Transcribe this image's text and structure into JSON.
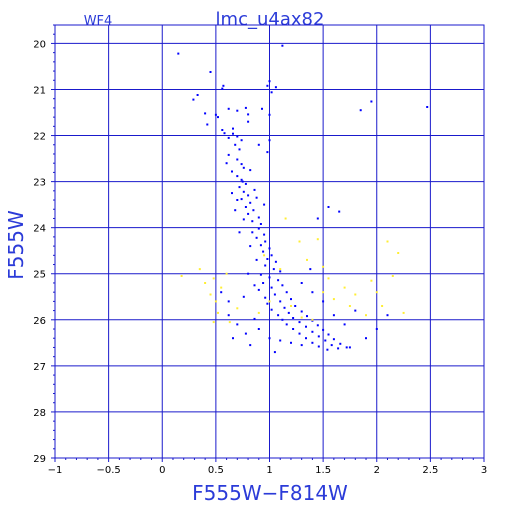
{
  "chart_data": {
    "type": "scatter",
    "title": "lmc_u4ax82",
    "subtitle": "WF4",
    "xlabel": "F555W−F814W",
    "ylabel": "F555W",
    "xlim": [
      -1,
      3
    ],
    "ylim": [
      29,
      19.6
    ],
    "y_inverted": true,
    "grid": true,
    "x_ticks": [
      -1,
      -0.5,
      0,
      0.5,
      1,
      1.5,
      2,
      2.5,
      3
    ],
    "x_tick_labels": [
      "−1",
      "−0.5",
      "0",
      "0.5",
      "1",
      "1.5",
      "2",
      "2.5",
      "3"
    ],
    "y_ticks": [
      20,
      21,
      22,
      23,
      24,
      25,
      26,
      27,
      28,
      29
    ],
    "y_tick_labels": [
      "20",
      "21",
      "22",
      "23",
      "24",
      "25",
      "26",
      "27",
      "28",
      "29"
    ],
    "colors": {
      "frame": "#1a1acc",
      "grid": "#1a1acc",
      "main_points": "#0000ff",
      "secondary_points": "#ffee33",
      "text": "#2b3bd8"
    },
    "series": [
      {
        "color": "#0000ff",
        "points": [
          [
            0.15,
            20.22
          ],
          [
            0.45,
            20.62
          ],
          [
            0.57,
            20.92
          ],
          [
            0.56,
            20.98
          ],
          [
            1.0,
            20.82
          ],
          [
            1.06,
            20.95
          ],
          [
            1.02,
            21.06
          ],
          [
            0.98,
            20.92
          ],
          [
            1.12,
            20.05
          ],
          [
            0.33,
            21.12
          ],
          [
            0.29,
            21.22
          ],
          [
            0.4,
            21.52
          ],
          [
            0.5,
            21.55
          ],
          [
            0.42,
            21.76
          ],
          [
            0.62,
            21.42
          ],
          [
            0.7,
            21.46
          ],
          [
            0.78,
            21.4
          ],
          [
            0.8,
            21.54
          ],
          [
            0.93,
            21.42
          ],
          [
            1.0,
            21.55
          ],
          [
            1.85,
            21.45
          ],
          [
            1.95,
            21.26
          ],
          [
            2.47,
            21.38
          ],
          [
            0.56,
            21.88
          ],
          [
            0.66,
            21.96
          ],
          [
            0.7,
            22.02
          ],
          [
            0.74,
            22.1
          ],
          [
            0.68,
            22.2
          ],
          [
            0.72,
            22.3
          ],
          [
            0.62,
            22.42
          ],
          [
            0.7,
            22.52
          ],
          [
            0.74,
            22.62
          ],
          [
            0.76,
            22.7
          ],
          [
            0.65,
            22.78
          ],
          [
            0.82,
            22.75
          ],
          [
            0.98,
            22.36
          ],
          [
            1.0,
            22.1
          ],
          [
            0.9,
            22.2
          ],
          [
            0.7,
            22.88
          ],
          [
            0.74,
            22.96
          ],
          [
            0.78,
            23.05
          ],
          [
            0.72,
            23.12
          ],
          [
            0.76,
            23.22
          ],
          [
            0.8,
            23.3
          ],
          [
            0.74,
            23.38
          ],
          [
            0.82,
            23.46
          ],
          [
            0.78,
            23.55
          ],
          [
            0.85,
            23.62
          ],
          [
            0.8,
            23.7
          ],
          [
            0.9,
            23.78
          ],
          [
            0.84,
            23.86
          ],
          [
            0.92,
            23.92
          ],
          [
            0.75,
            23.0
          ],
          [
            0.86,
            23.18
          ],
          [
            0.7,
            23.4
          ],
          [
            0.95,
            23.5
          ],
          [
            0.88,
            23.35
          ],
          [
            0.68,
            23.62
          ],
          [
            0.9,
            24.02
          ],
          [
            0.84,
            24.1
          ],
          [
            0.95,
            24.15
          ],
          [
            0.88,
            24.22
          ],
          [
            0.96,
            24.3
          ],
          [
            0.92,
            24.38
          ],
          [
            1.0,
            24.45
          ],
          [
            0.94,
            24.52
          ],
          [
            1.02,
            24.6
          ],
          [
            0.98,
            24.68
          ],
          [
            1.06,
            24.74
          ],
          [
            0.96,
            24.82
          ],
          [
            1.04,
            24.9
          ],
          [
            1.1,
            24.95
          ],
          [
            0.92,
            25.02
          ],
          [
            1.0,
            25.08
          ],
          [
            1.08,
            25.14
          ],
          [
            0.94,
            25.2
          ],
          [
            1.12,
            25.25
          ],
          [
            1.02,
            25.3
          ],
          [
            0.9,
            25.35
          ],
          [
            1.16,
            25.4
          ],
          [
            1.05,
            25.45
          ],
          [
            0.96,
            25.52
          ],
          [
            1.2,
            25.55
          ],
          [
            1.1,
            25.6
          ],
          [
            0.98,
            25.65
          ],
          [
            1.24,
            25.7
          ],
          [
            1.14,
            25.74
          ],
          [
            1.02,
            25.78
          ],
          [
            1.3,
            25.82
          ],
          [
            1.18,
            25.85
          ],
          [
            1.08,
            25.9
          ],
          [
            1.35,
            25.92
          ],
          [
            1.22,
            25.96
          ],
          [
            1.12,
            26.0
          ],
          [
            1.4,
            26.02
          ],
          [
            1.28,
            26.05
          ],
          [
            1.16,
            26.1
          ],
          [
            1.45,
            26.12
          ],
          [
            1.34,
            26.15
          ],
          [
            1.22,
            26.2
          ],
          [
            1.5,
            26.22
          ],
          [
            1.4,
            26.26
          ],
          [
            1.28,
            26.3
          ],
          [
            1.55,
            26.32
          ],
          [
            1.46,
            26.36
          ],
          [
            1.34,
            26.4
          ],
          [
            1.6,
            26.42
          ],
          [
            1.52,
            26.45
          ],
          [
            1.4,
            26.5
          ],
          [
            1.66,
            26.52
          ],
          [
            1.58,
            26.55
          ],
          [
            1.46,
            26.58
          ],
          [
            1.72,
            26.6
          ],
          [
            1.64,
            26.62
          ],
          [
            1.54,
            26.65
          ],
          [
            1.3,
            26.55
          ],
          [
            1.2,
            26.5
          ],
          [
            1.1,
            26.45
          ],
          [
            0.62,
            25.9
          ],
          [
            0.7,
            26.1
          ],
          [
            0.66,
            26.4
          ],
          [
            0.78,
            26.3
          ],
          [
            0.82,
            26.55
          ],
          [
            0.9,
            26.2
          ],
          [
            0.86,
            25.98
          ],
          [
            1.0,
            26.4
          ],
          [
            1.05,
            26.7
          ],
          [
            0.55,
            25.4
          ],
          [
            0.62,
            25.6
          ],
          [
            1.5,
            25.6
          ],
          [
            1.6,
            25.9
          ],
          [
            1.7,
            26.1
          ],
          [
            1.8,
            25.8
          ],
          [
            2.0,
            26.2
          ],
          [
            2.1,
            25.9
          ],
          [
            1.9,
            26.4
          ],
          [
            1.75,
            26.6
          ],
          [
            1.65,
            23.65
          ],
          [
            1.45,
            23.8
          ],
          [
            1.55,
            23.55
          ],
          [
            1.3,
            25.2
          ],
          [
            1.4,
            25.4
          ],
          [
            1.38,
            24.9
          ],
          [
            0.8,
            21.7
          ],
          [
            0.66,
            21.85
          ],
          [
            0.62,
            22.05
          ],
          [
            0.58,
            21.95
          ],
          [
            0.52,
            21.6
          ],
          [
            0.6,
            22.6
          ],
          [
            0.65,
            23.25
          ],
          [
            0.76,
            23.82
          ],
          [
            0.72,
            24.1
          ],
          [
            0.82,
            24.4
          ],
          [
            0.88,
            24.7
          ],
          [
            0.8,
            25.0
          ],
          [
            0.86,
            25.25
          ],
          [
            0.76,
            25.5
          ]
        ]
      },
      {
        "color": "#ffee33",
        "points": [
          [
            0.18,
            25.05
          ],
          [
            0.35,
            24.9
          ],
          [
            0.4,
            25.2
          ],
          [
            0.45,
            25.45
          ],
          [
            0.48,
            25.1
          ],
          [
            0.5,
            25.6
          ],
          [
            0.52,
            25.85
          ],
          [
            0.48,
            26.05
          ],
          [
            0.55,
            25.3
          ],
          [
            0.6,
            25.0
          ],
          [
            0.63,
            26.05
          ],
          [
            0.7,
            25.75
          ],
          [
            1.15,
            23.8
          ],
          [
            1.28,
            24.3
          ],
          [
            1.35,
            24.7
          ],
          [
            1.45,
            24.25
          ],
          [
            1.5,
            24.85
          ],
          [
            1.55,
            25.1
          ],
          [
            1.5,
            25.4
          ],
          [
            1.6,
            25.55
          ],
          [
            1.7,
            25.3
          ],
          [
            1.75,
            25.7
          ],
          [
            1.8,
            25.45
          ],
          [
            1.9,
            25.9
          ],
          [
            1.95,
            25.15
          ],
          [
            2.0,
            25.4
          ],
          [
            2.05,
            25.7
          ],
          [
            2.1,
            24.3
          ],
          [
            2.2,
            24.55
          ],
          [
            2.15,
            25.05
          ],
          [
            2.25,
            25.85
          ],
          [
            1.2,
            25.7
          ],
          [
            1.3,
            25.95
          ],
          [
            1.0,
            25.6
          ],
          [
            0.9,
            25.85
          ],
          [
            1.1,
            24.9
          ],
          [
            0.95,
            24.6
          ],
          [
            1.4,
            26.0
          ]
        ]
      }
    ]
  }
}
